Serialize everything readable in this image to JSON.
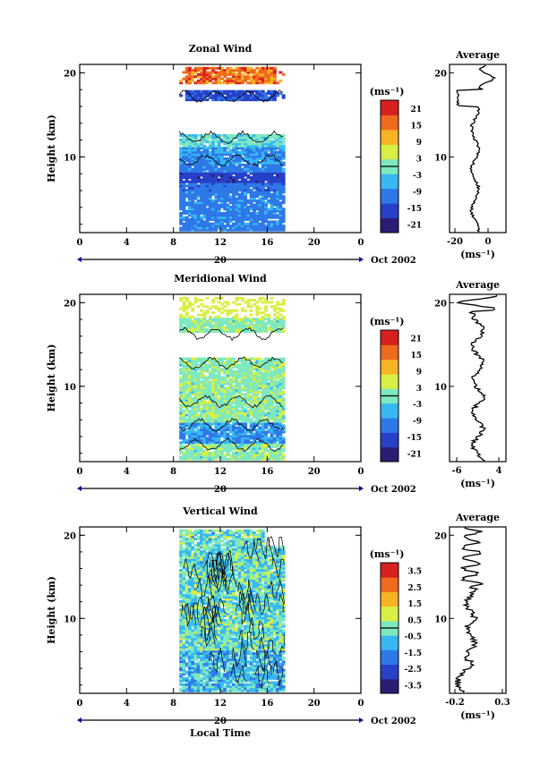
{
  "chart_data": [
    {
      "type": "heatmap",
      "title": "Zonal Wind",
      "ylabel": "Height (km)",
      "yticks": [
        "20",
        "10"
      ],
      "xticks": [
        "0",
        "4",
        "8",
        "12",
        "16",
        "20",
        "0"
      ],
      "date_tick": "20",
      "date_label": "Oct 2002",
      "colorbar": {
        "unit": "(ms⁻¹)",
        "ticks": [
          "21",
          "15",
          "9",
          "3",
          "-3",
          "-9",
          "-15",
          "-21"
        ]
      },
      "profile": {
        "title": "Average",
        "xlabel": "(ms⁻¹)",
        "xticks": [
          "-20",
          "0"
        ],
        "yticks": [
          "20",
          "10"
        ]
      },
      "xlim": [
        0,
        24
      ],
      "ylim": [
        1,
        21
      ],
      "clim": [
        -24,
        24
      ],
      "x_extent": [
        8.5,
        17.5
      ]
    },
    {
      "type": "heatmap",
      "title": "Meridional Wind",
      "ylabel": "Height (km)",
      "yticks": [
        "20",
        "10"
      ],
      "xticks": [
        "0",
        "4",
        "8",
        "12",
        "16",
        "20",
        "0"
      ],
      "date_tick": "20",
      "date_label": "Oct 2002",
      "colorbar": {
        "unit": "(ms⁻¹)",
        "ticks": [
          "21",
          "15",
          "9",
          "3",
          "-3",
          "-9",
          "-15",
          "-21"
        ]
      },
      "profile": {
        "title": "Average",
        "xlabel": "(ms⁻¹)",
        "xticks": [
          "-6",
          "4"
        ],
        "yticks": [
          "20",
          "10"
        ]
      },
      "xlim": [
        0,
        24
      ],
      "ylim": [
        1,
        21
      ],
      "clim": [
        -24,
        24
      ],
      "x_extent": [
        8.5,
        17.5
      ]
    },
    {
      "type": "heatmap",
      "title": "Vertical Wind",
      "ylabel": "Height (km)",
      "yticks": [
        "20",
        "10"
      ],
      "xticks": [
        "0",
        "4",
        "8",
        "12",
        "16",
        "20",
        "0"
      ],
      "date_tick": "20",
      "date_label": "Oct 2002",
      "xlabel": "Local Time",
      "colorbar": {
        "unit": "(ms⁻¹)",
        "ticks": [
          "3.5",
          "2.5",
          "1.5",
          "0.5",
          "-0.5",
          "-1.5",
          "-2.5",
          "-3.5"
        ]
      },
      "profile": {
        "title": "Average",
        "xlabel": "(ms⁻¹)",
        "xticks": [
          "-0.2",
          "0.3"
        ],
        "yticks": [
          "20",
          "10"
        ]
      },
      "xlim": [
        0,
        24
      ],
      "ylim": [
        1,
        21
      ],
      "clim": [
        -4,
        4
      ],
      "x_extent": [
        8.5,
        17.5
      ]
    }
  ],
  "colors": {
    "colormap": [
      "#2b1d73",
      "#2740c8",
      "#2f78e8",
      "#38b8f2",
      "#7ee8c0",
      "#d8ef45",
      "#f8b325",
      "#f06a1e",
      "#d82020"
    ],
    "text": "#000000",
    "date_axis": "#0000aa"
  }
}
